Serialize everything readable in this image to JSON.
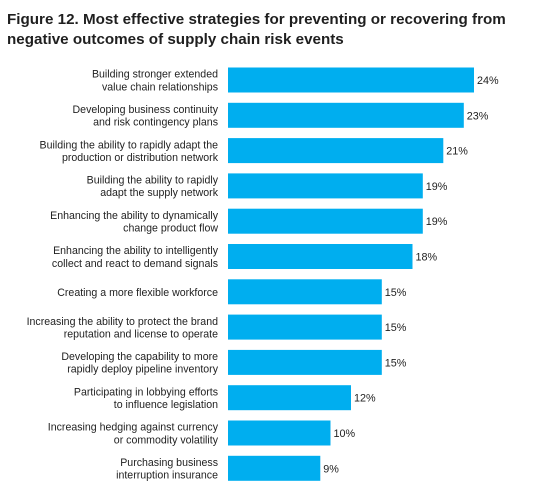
{
  "title": "Figure 12. Most effective strategies for preventing or recovering from negative outcomes of supply chain risk events",
  "chart_data": {
    "type": "bar",
    "orientation": "horizontal",
    "title": "Figure 12. Most effective strategies for preventing or recovering from negative outcomes of supply chain risk events",
    "xlabel": "",
    "ylabel": "",
    "value_suffix": "%",
    "xlim": [
      0,
      24
    ],
    "grid": false,
    "legend": "none",
    "bar_color": "#00aeef",
    "categories": [
      [
        "Building stronger extended",
        "value chain relationships"
      ],
      [
        "Developing business continuity",
        "and risk contingency plans"
      ],
      [
        "Building the ability to rapidly adapt the",
        "production or distribution network"
      ],
      [
        "Building the ability to rapidly",
        "adapt the supply network"
      ],
      [
        "Enhancing the ability to dynamically",
        "change product flow"
      ],
      [
        "Enhancing the ability to intelligently",
        "collect and react to demand signals"
      ],
      [
        "Creating a more flexible workforce"
      ],
      [
        "Increasing the ability to protect the brand",
        "reputation and license to operate"
      ],
      [
        "Developing the capability to more",
        "rapidly deploy pipeline inventory"
      ],
      [
        "Participating in lobbying efforts",
        "to influence legislation"
      ],
      [
        "Increasing hedging against currency",
        "or commodity volatility"
      ],
      [
        "Purchasing business",
        "interruption insurance"
      ]
    ],
    "values": [
      24,
      23,
      21,
      19,
      19,
      18,
      15,
      15,
      15,
      12,
      10,
      9
    ]
  }
}
